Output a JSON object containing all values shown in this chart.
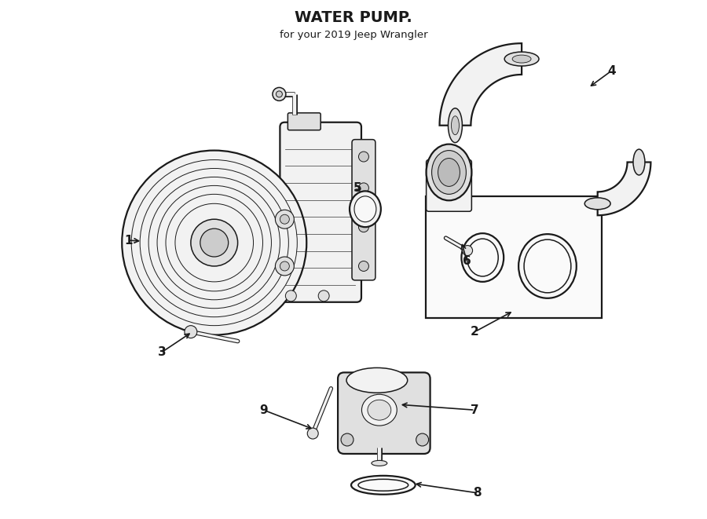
{
  "title": "WATER PUMP.",
  "subtitle": "for your 2019 Jeep Wrangler",
  "bg_color": "#ffffff",
  "line_color": "#1a1a1a",
  "fill_light": "#f2f2f2",
  "fill_mid": "#e0e0e0",
  "fill_dark": "#cccccc"
}
